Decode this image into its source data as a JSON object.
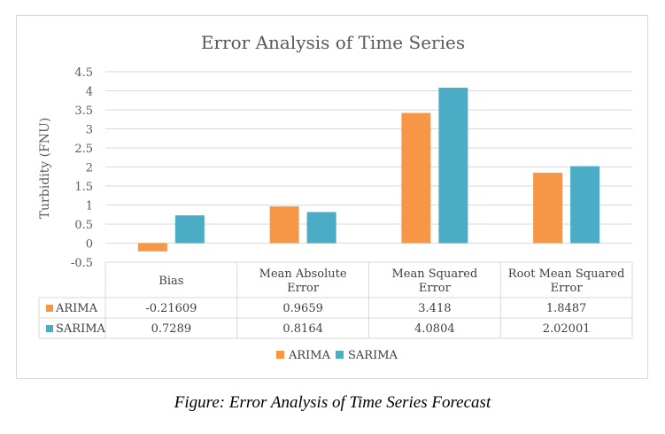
{
  "caption": "Figure: Error Analysis of Time Series Forecast",
  "colors": {
    "ARIMA": "#f79646",
    "SARIMA": "#4bacc6"
  },
  "chart_data": {
    "type": "bar",
    "title": "Error Analysis of Time Series",
    "ylabel": "Turbidity (FNU)",
    "xlabel": "",
    "ylim": [
      -0.5,
      4.5
    ],
    "yticks": [
      "-0.5",
      "0",
      "0.5",
      "1",
      "1.5",
      "2",
      "2.5",
      "3",
      "3.5",
      "4",
      "4.5"
    ],
    "grid": true,
    "legend": "bottom",
    "categories": [
      [
        "Bias"
      ],
      [
        "Mean Absolute",
        "Error"
      ],
      [
        "Mean Squared",
        "Error"
      ],
      [
        "Root Mean Squared",
        "Error"
      ]
    ],
    "series": [
      {
        "name": "ARIMA",
        "values": [
          -0.21609,
          0.9659,
          3.418,
          1.8487
        ],
        "labels": [
          "-0.21609",
          "0.9659",
          "3.418",
          "1.8487"
        ]
      },
      {
        "name": "SARIMA",
        "values": [
          0.7289,
          0.8164,
          4.0804,
          2.02001
        ],
        "labels": [
          "0.7289",
          "0.8164",
          "4.0804",
          "2.02001"
        ]
      }
    ]
  }
}
